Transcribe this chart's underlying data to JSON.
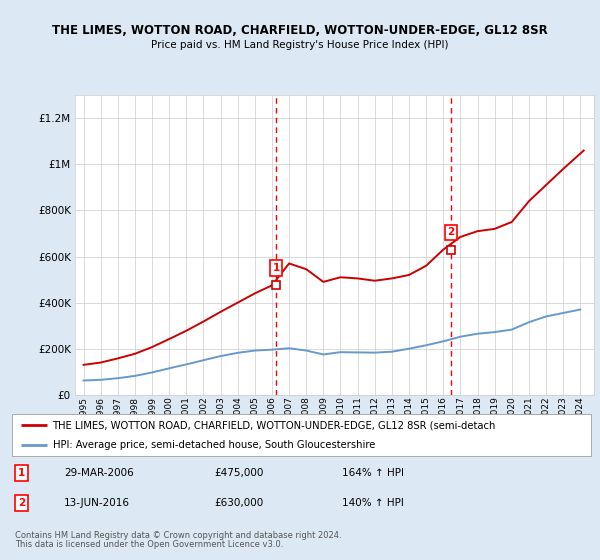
{
  "title1": "THE LIMES, WOTTON ROAD, CHARFIELD, WOTTON-UNDER-EDGE, GL12 8SR",
  "title2": "Price paid vs. HM Land Registry's House Price Index (HPI)",
  "ylim": [
    0,
    1300000
  ],
  "yticks": [
    0,
    200000,
    400000,
    600000,
    800000,
    1000000,
    1200000
  ],
  "legend_line1": "THE LIMES, WOTTON ROAD, CHARFIELD, WOTTON-UNDER-EDGE, GL12 8SR (semi-detach",
  "legend_line2": "HPI: Average price, semi-detached house, South Gloucestershire",
  "sale1_date": "29-MAR-2006",
  "sale1_price": 475000,
  "sale1_pct": "164% ↑ HPI",
  "sale2_date": "13-JUN-2016",
  "sale2_price": 630000,
  "sale2_pct": "140% ↑ HPI",
  "sale1_year": 2006.24,
  "sale2_year": 2016.45,
  "footer1": "Contains HM Land Registry data © Crown copyright and database right 2024.",
  "footer2": "This data is licensed under the Open Government Licence v3.0.",
  "bg_color": "#dce9f5",
  "plot_bg_color": "#ffffff",
  "line_red": "#cc0000",
  "line_blue": "#6699cc",
  "hpi_years": [
    1995,
    1996,
    1997,
    1998,
    1999,
    2000,
    2001,
    2002,
    2003,
    2004,
    2005,
    2006,
    2007,
    2008,
    2009,
    2010,
    2011,
    2012,
    2013,
    2014,
    2015,
    2016,
    2017,
    2018,
    2019,
    2020,
    2021,
    2022,
    2023,
    2024
  ],
  "hpi_values": [
    62000,
    65000,
    72000,
    82000,
    97000,
    115000,
    132000,
    150000,
    168000,
    182000,
    192000,
    196000,
    202000,
    192000,
    175000,
    185000,
    184000,
    183000,
    187000,
    200000,
    215000,
    232000,
    252000,
    265000,
    272000,
    283000,
    315000,
    340000,
    355000,
    370000
  ],
  "price_years": [
    1995,
    1996,
    1997,
    1998,
    1999,
    2000,
    2001,
    2002,
    2003,
    2004,
    2005,
    2006,
    2007,
    2008,
    2009,
    2010,
    2011,
    2012,
    2013,
    2014,
    2015,
    2016,
    2017,
    2018,
    2019,
    2020,
    2021,
    2022,
    2023,
    2024.2
  ],
  "price_values": [
    130000,
    140000,
    158000,
    178000,
    207000,
    242000,
    278000,
    318000,
    360000,
    400000,
    440000,
    475000,
    570000,
    545000,
    490000,
    510000,
    505000,
    495000,
    505000,
    520000,
    560000,
    630000,
    685000,
    710000,
    720000,
    750000,
    840000,
    910000,
    980000,
    1060000
  ]
}
